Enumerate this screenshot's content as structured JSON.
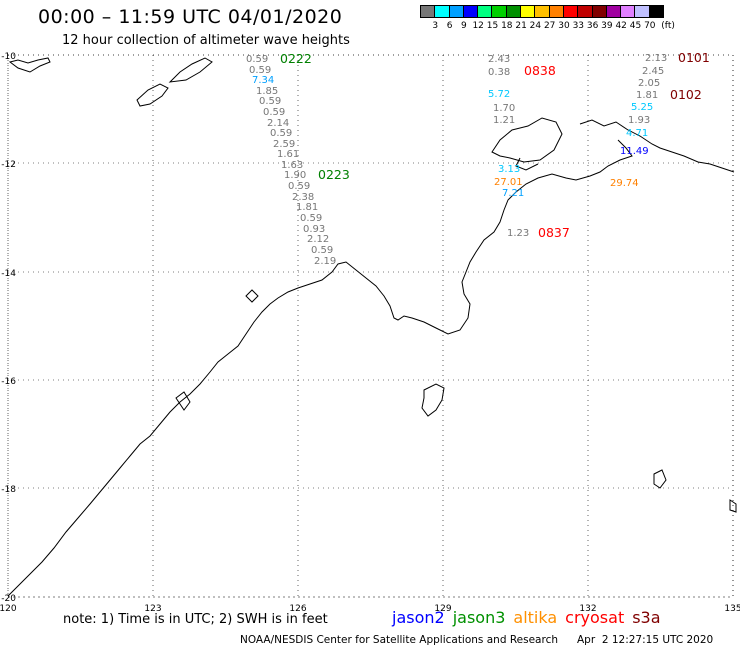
{
  "header": {
    "title": "00:00 – 11:59 UTC 04/01/2020",
    "subtitle": "12 hour collection of altimeter wave heights"
  },
  "scale": {
    "colors": [
      "#777777",
      "#00ffff",
      "#00a0ff",
      "#0000ff",
      "#00ff80",
      "#00d000",
      "#009000",
      "#ffff00",
      "#ffc000",
      "#ff8000",
      "#ff0000",
      "#c00000",
      "#800000",
      "#a000a0",
      "#e080ff",
      "#c0c0ff",
      "#000000"
    ],
    "labels": [
      "3",
      "6",
      "9",
      "12",
      "15",
      "18",
      "21",
      "24",
      "27",
      "30",
      "33",
      "36",
      "39",
      "42",
      "45",
      "70",
      "(ft)"
    ]
  },
  "axes": {
    "lon_labels": [
      "120",
      "123",
      "126",
      "129",
      "132",
      "135"
    ],
    "lat_labels": [
      "-10",
      "-12",
      "-14",
      "-16",
      "-18",
      "-20"
    ]
  },
  "passes": [
    {
      "text": "0222",
      "color": "#008000"
    },
    {
      "text": "0223",
      "color": "#008000"
    },
    {
      "text": "0838",
      "color": "#ff0000"
    },
    {
      "text": "0837",
      "color": "#ff0000"
    },
    {
      "text": "0101",
      "color": "#800000"
    },
    {
      "text": "0102",
      "color": "#800000"
    }
  ],
  "measurements": {
    "track_0222": [
      "0.59",
      "0.59",
      "7.34",
      "1.85",
      "0.59",
      "0.59",
      "2.14",
      "0.59",
      "2.59",
      "1.61",
      "1.63",
      "1.90",
      "0.59",
      "2.38",
      "1.81",
      "0.59",
      "0.93",
      "2.12",
      "0.59",
      "2.19"
    ],
    "track_0222_colors": [
      "#777777",
      "#777777",
      "#00a0ff",
      "#777777",
      "#777777",
      "#777777",
      "#777777",
      "#777777",
      "#777777",
      "#777777",
      "#777777",
      "#777777",
      "#777777",
      "#777777",
      "#777777",
      "#777777",
      "#777777",
      "#777777",
      "#777777",
      "#777777"
    ],
    "track_0838": [
      "2.43",
      "0.38",
      "5.72",
      "1.70",
      "1.21",
      "3.13",
      "27.01",
      "7.21",
      "1.23"
    ],
    "track_0838_colors": [
      "#777777",
      "#777777",
      "#00c8ff",
      "#777777",
      "#777777",
      "#00c8ff",
      "#ff8000",
      "#00a0ff",
      "#777777"
    ],
    "track_0101": [
      "2.13",
      "2.45",
      "2.05",
      "1.81",
      "5.25",
      "1.93",
      "4.71",
      "11.49",
      "29.74"
    ],
    "track_0101_colors": [
      "#777777",
      "#777777",
      "#777777",
      "#777777",
      "#00c8ff",
      "#777777",
      "#00c8ff",
      "#0000ff",
      "#ff8000"
    ]
  },
  "footer": {
    "note": "note:  1) Time is in UTC;  2) SWH is in feet",
    "satellites": [
      {
        "name": "jason2",
        "color": "#0000ff"
      },
      {
        "name": "jason3",
        "color": "#009000"
      },
      {
        "name": "altika",
        "color": "#ff9000"
      },
      {
        "name": "cryosat",
        "color": "#ff0000"
      },
      {
        "name": "s3a",
        "color": "#800000"
      }
    ],
    "credit": "NOAA/NESDIS Center for Satellite Applications and Research",
    "timestamp": "Apr  2 12:27:15 UTC 2020"
  }
}
